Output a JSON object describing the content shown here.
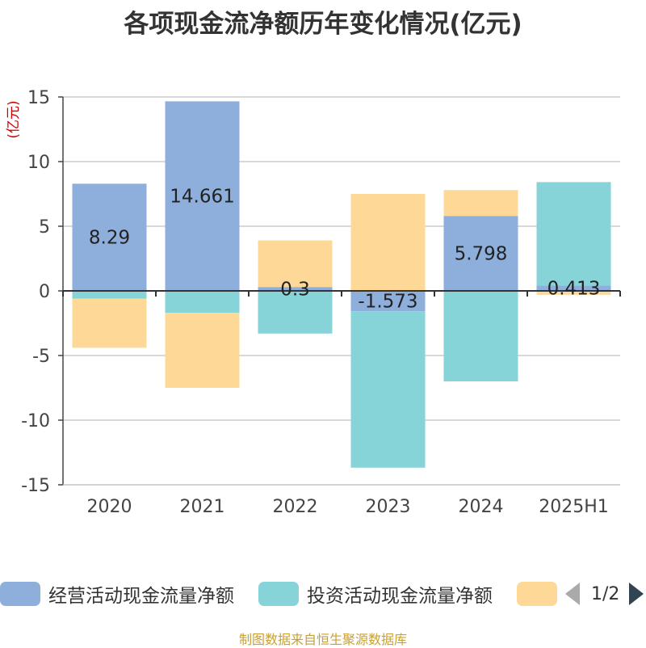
{
  "title": "各项现金流净额历年变化情况(亿元)",
  "source": "制图数据来自恒生聚源数据库",
  "pager": {
    "text": "1/2"
  },
  "chart_data": {
    "type": "bar",
    "stacked": true,
    "ylabel": "(亿元)",
    "ylim": [
      -15,
      15
    ],
    "yticks": [
      -15,
      -10,
      -5,
      0,
      5,
      10,
      15
    ],
    "categories": [
      "2020",
      "2021",
      "2022",
      "2023",
      "2024",
      "2025H1"
    ],
    "series": [
      {
        "name": "经营活动现金流量净额",
        "color": "#8eaedb",
        "values": [
          8.29,
          14.661,
          0.3,
          -1.573,
          5.798,
          0.413
        ],
        "labels": [
          "8.29",
          "14.661",
          "0.3",
          "-1.573",
          "5.798",
          "0.413"
        ]
      },
      {
        "name": "投资活动现金流量净额",
        "color": "#86d4d8",
        "values": [
          -0.6,
          -1.7,
          -3.3,
          -12.1,
          -7.0,
          8.0
        ]
      },
      {
        "name": "",
        "color": "#fdd897",
        "values": [
          -3.8,
          -5.8,
          3.6,
          7.5,
          2.0,
          -0.3
        ]
      }
    ]
  }
}
